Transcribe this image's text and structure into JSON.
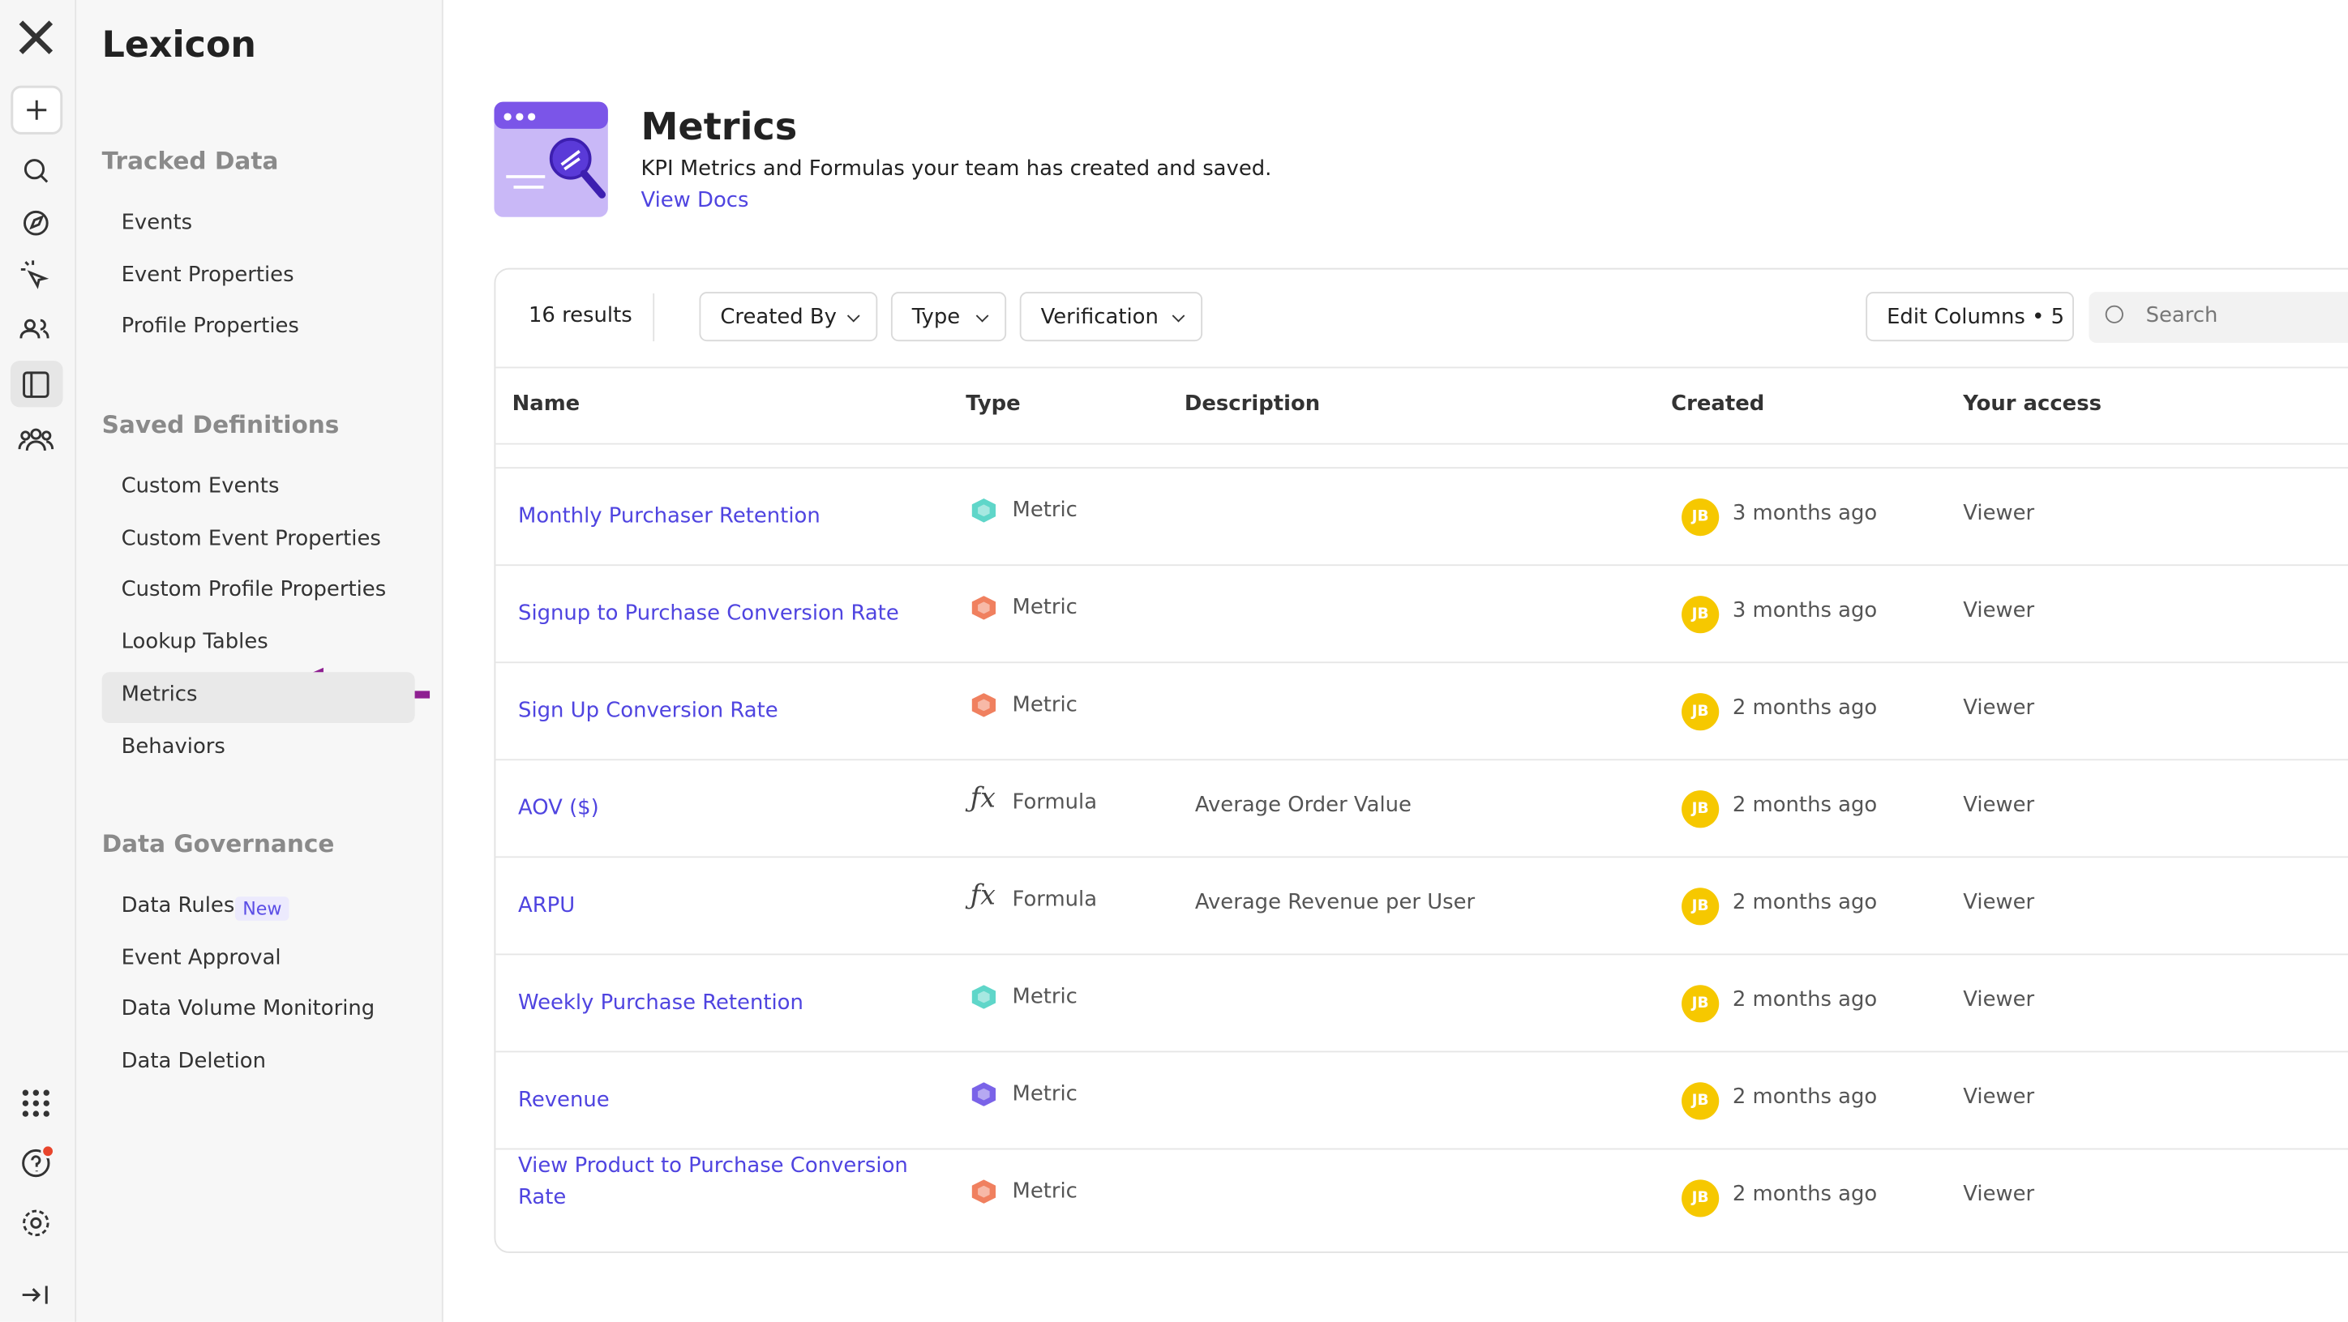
{
  "sidebar": {
    "title": "Lexicon",
    "sections": [
      {
        "heading": "Tracked Data",
        "items": [
          {
            "label": "Events"
          },
          {
            "label": "Event Properties"
          },
          {
            "label": "Profile Properties"
          }
        ]
      },
      {
        "heading": "Saved Definitions",
        "items": [
          {
            "label": "Custom Events"
          },
          {
            "label": "Custom Event Properties"
          },
          {
            "label": "Custom Profile Properties"
          },
          {
            "label": "Lookup Tables"
          },
          {
            "label": "Metrics",
            "selected": true
          },
          {
            "label": "Behaviors"
          }
        ]
      },
      {
        "heading": "Data Governance",
        "items": [
          {
            "label": "Data Rules",
            "badge": "New"
          },
          {
            "label": "Event Approval"
          },
          {
            "label": "Data Volume Monitoring"
          },
          {
            "label": "Data Deletion"
          }
        ]
      }
    ]
  },
  "header": {
    "title": "Metrics",
    "subtitle": "KPI Metrics and Formulas your team has created and saved.",
    "link": "View Docs"
  },
  "toolbar": {
    "results": "16 results",
    "filters": [
      "Created By",
      "Type",
      "Verification"
    ],
    "edit_columns": "Edit Columns • 5",
    "search_placeholder": "Search"
  },
  "table": {
    "columns": [
      "Name",
      "Type",
      "Description",
      "Created",
      "Your access"
    ],
    "rows": [
      {
        "name": "Monthly Purchaser Retention",
        "type": "Metric",
        "icon_color": "#5fd6c9",
        "created_by": "JB",
        "created": "3 months ago",
        "access": "Viewer"
      },
      {
        "name": "Signup to Purchase Conversion Rate",
        "type": "Metric",
        "icon_color": "#f0805f",
        "created_by": "JB",
        "created": "3 months ago",
        "access": "Viewer"
      },
      {
        "name": "Sign Up Conversion Rate",
        "type": "Metric",
        "icon_color": "#f0805f",
        "created_by": "JB",
        "created": "2 months ago",
        "access": "Viewer"
      },
      {
        "name": "AOV ($)",
        "type": "Formula",
        "description": "Average Order Value",
        "created_by": "JB",
        "created": "2 months ago",
        "access": "Viewer"
      },
      {
        "name": "ARPU",
        "type": "Formula",
        "description": "Average Revenue per User",
        "created_by": "JB",
        "created": "2 months ago",
        "access": "Viewer"
      },
      {
        "name": "Weekly Purchase Retention",
        "type": "Metric",
        "icon_color": "#5fd6c9",
        "created_by": "JB",
        "created": "2 months ago",
        "access": "Viewer"
      },
      {
        "name": "Revenue",
        "type": "Metric",
        "icon_color": "#7a63e8",
        "created_by": "JB",
        "created": "2 months ago",
        "access": "Viewer"
      },
      {
        "name": "View Product to Purchase Conversion Rate",
        "type": "Metric",
        "icon_color": "#f0805f",
        "created_by": "JB",
        "created": "2 months ago",
        "access": "Viewer"
      }
    ]
  }
}
